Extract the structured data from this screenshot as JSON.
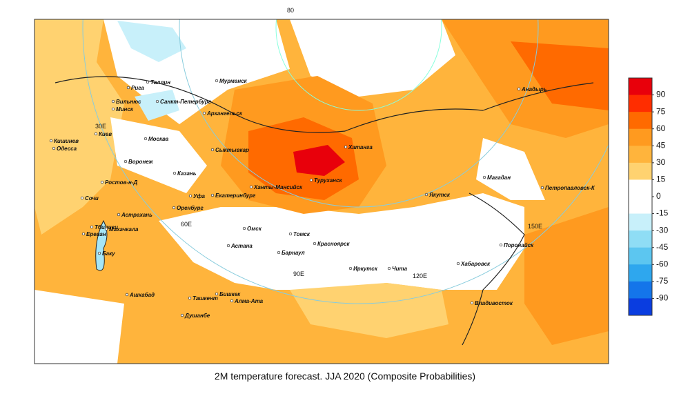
{
  "title": "2M temperature forecast. JJA 2020 (Composite Probabilities)",
  "lat_label": "80",
  "longitude_labels": [
    "30E",
    "60E",
    "90E",
    "120E",
    "150E"
  ],
  "cities": [
    "Мурманск",
    "Рига",
    "Таллин",
    "Санкт-Петербург",
    "Вильнюс",
    "Минск",
    "Архангельск",
    "Москва",
    "Киев",
    "Кишинев",
    "Одесса",
    "Воронеж",
    "Сыктывкар",
    "Казань",
    "Хатанга",
    "Туруханск",
    "Ханты-Мансийск",
    "Ростов-н-Д",
    "Уфа",
    "Екатеринбург",
    "Сочи",
    "Оренбург",
    "Астрахань",
    "Тбилиси",
    "Махачкала",
    "Ереван",
    "Омск",
    "Томск",
    "Красноярск",
    "Астана",
    "Барнаул",
    "Баку",
    "Иркутск",
    "Чита",
    "Ашхабад",
    "Ташкент",
    "Бишкек",
    "Алма-Ата",
    "Душанбе",
    "Якутск",
    "Магадан",
    "Анадырь",
    "Петропавловск-К",
    "Поронайск",
    "Хабаровск",
    "Владивосток"
  ],
  "colorbar": {
    "ticks": [
      90,
      75,
      60,
      45,
      30,
      15,
      0,
      -15,
      -30,
      -45,
      -60,
      -75,
      -90
    ],
    "colors": [
      "#e8000b",
      "#ff2d00",
      "#ff6a00",
      "#ff9a1f",
      "#ffb43c",
      "#ffd270",
      "#ffffff",
      "#ffffff",
      "#c8f0fa",
      "#8fddf5",
      "#5cc6f0",
      "#2ea7ee",
      "#1475ea",
      "#0a3de0"
    ]
  }
}
